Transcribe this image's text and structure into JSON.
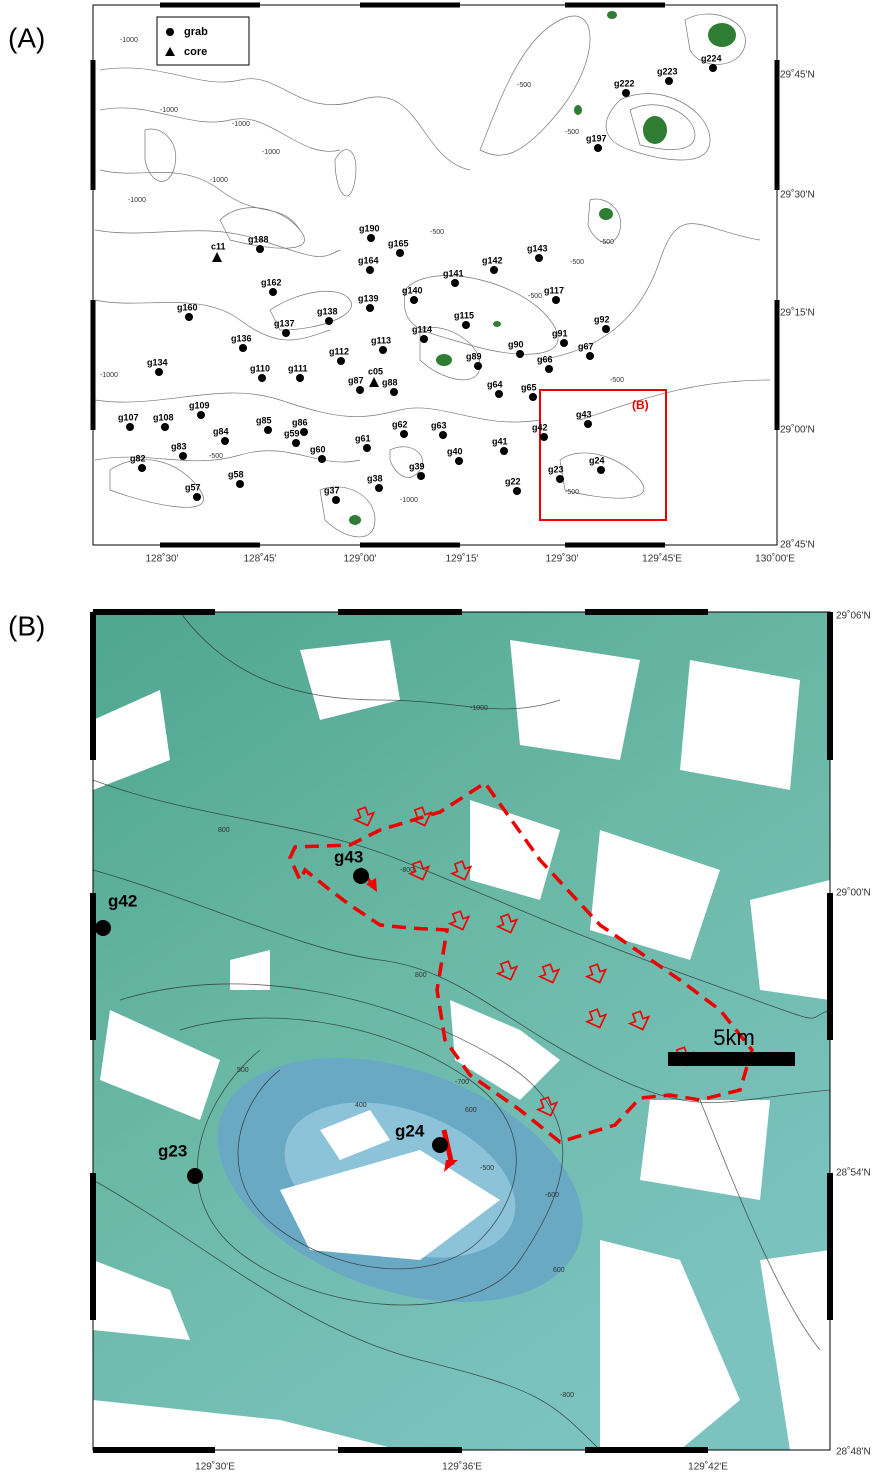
{
  "panel_a": {
    "label": "(A)",
    "legend": [
      "grab",
      "core"
    ],
    "inset_label": "(B)",
    "x_ticks": [
      "128˚30'",
      "128˚45'",
      "129˚00'",
      "129˚15'",
      "129˚30'",
      "129˚45'E",
      "130˚00'E"
    ],
    "y_ticks": [
      "29˚45'N",
      "29˚30'N",
      "29˚15'N",
      "29˚00'N",
      "28˚45'N"
    ],
    "grab_stations": [
      "g224",
      "g223",
      "g222",
      "g197",
      "g190",
      "g188",
      "g165",
      "g164",
      "g143",
      "g142",
      "g141",
      "g162",
      "g140",
      "g139",
      "g117",
      "g160",
      "g138",
      "g137",
      "g115",
      "g92",
      "g136",
      "g114",
      "g113",
      "g91",
      "g90",
      "g112",
      "g89",
      "g67",
      "g66",
      "g134",
      "g110",
      "g111",
      "g87",
      "g88",
      "g64",
      "g65",
      "g43",
      "g107",
      "g108",
      "g109",
      "g85",
      "g86",
      "g62",
      "g63",
      "g42",
      "g84",
      "g59",
      "g61",
      "g41",
      "g60",
      "g83",
      "g40",
      "g39",
      "g24",
      "g23",
      "g82",
      "g58",
      "g38",
      "g57",
      "g22",
      "g37"
    ],
    "core_stations": [
      "c11",
      "c05"
    ],
    "contour_labels": [
      "-1000",
      "-1000",
      "-1000",
      "-1000",
      "-1000",
      "-500",
      "-500",
      "-500",
      "-500",
      "-500",
      "-500",
      "-500",
      "-1000",
      "-500",
      "-1000",
      "-500",
      "-1000"
    ]
  },
  "panel_b": {
    "label": "(B)",
    "x_ticks": [
      "129˚30'E",
      "129˚36'E",
      "129˚42'E"
    ],
    "y_ticks": [
      "29˚06'N",
      "29˚00'N",
      "28˚54'N",
      "28˚48'N"
    ],
    "stations": [
      "g43",
      "g42",
      "g23",
      "g24"
    ],
    "scale_bar": "5km",
    "contour_labels": [
      "-1000",
      "800",
      "-800",
      "800",
      "-700",
      "600",
      "400",
      "500",
      "-500",
      "-600",
      "600",
      "-800"
    ]
  }
}
